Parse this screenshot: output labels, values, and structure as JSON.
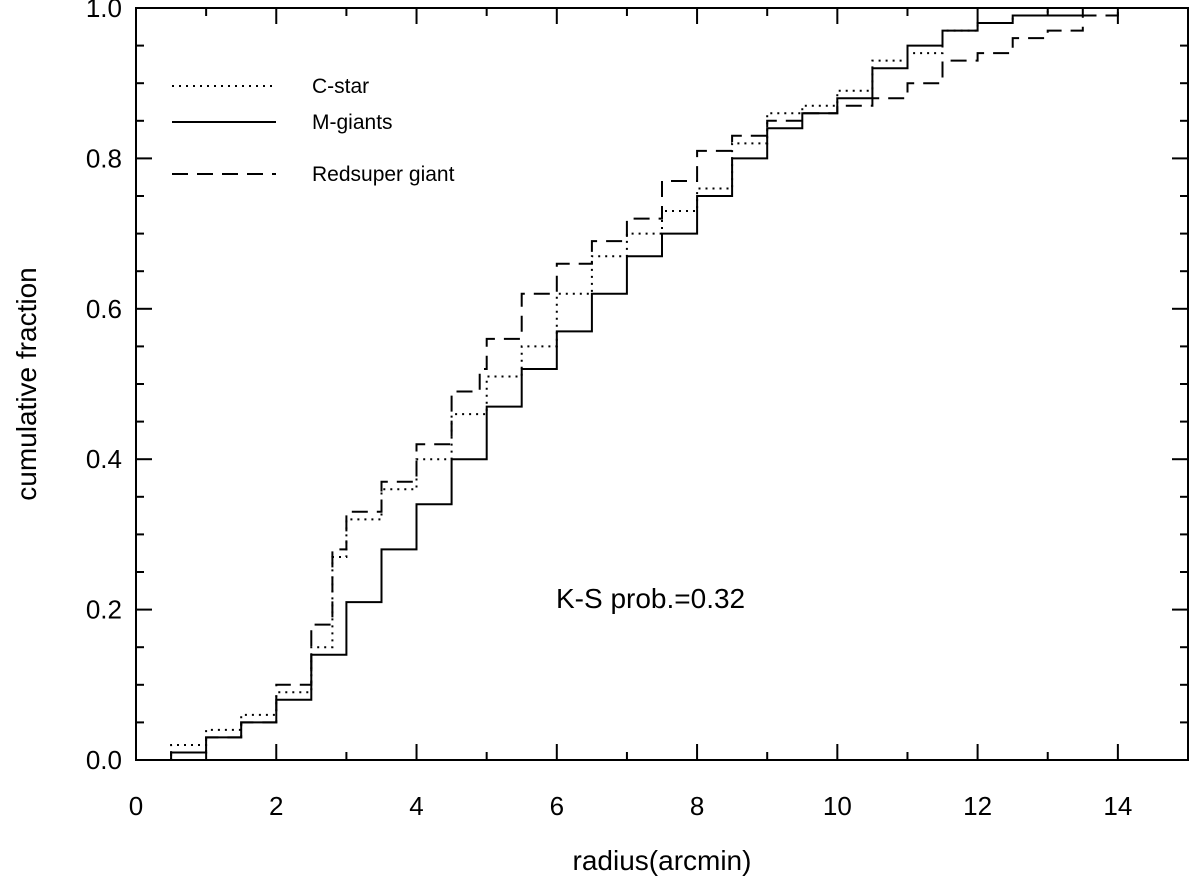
{
  "chart_data": {
    "type": "line",
    "title": "",
    "xlabel": "radius(arcmin)",
    "ylabel": "cumulative fraction",
    "xlim": [
      0,
      15
    ],
    "ylim": [
      0,
      1
    ],
    "x_ticks": [
      0,
      2,
      4,
      6,
      8,
      10,
      12,
      14
    ],
    "y_ticks": [
      0.0,
      0.2,
      0.4,
      0.6,
      0.8,
      1.0
    ],
    "x_tick_labels": [
      "0",
      "2",
      "4",
      "6",
      "8",
      "10",
      "12",
      "14"
    ],
    "y_tick_labels": [
      "0.0",
      "0.2",
      "0.4",
      "0.6",
      "0.8",
      "1.0"
    ],
    "grid": false,
    "legend_position": "top-left",
    "annotation": "K-S prob.=0.32",
    "series": [
      {
        "name": "C-star",
        "style": "dotted",
        "x": [
          0.2,
          0.5,
          1.0,
          1.5,
          2.0,
          2.5,
          2.8,
          3.0,
          3.5,
          4.0,
          4.5,
          5.0,
          5.5,
          6.0,
          6.5,
          7.0,
          7.5,
          8.0,
          8.5,
          9.0,
          9.5,
          10.0,
          10.5,
          11.0,
          11.5,
          12.0,
          12.5,
          13.0,
          13.5,
          14.0,
          15.0
        ],
        "y": [
          0.0,
          0.02,
          0.04,
          0.06,
          0.09,
          0.15,
          0.27,
          0.32,
          0.36,
          0.4,
          0.46,
          0.51,
          0.55,
          0.62,
          0.67,
          0.7,
          0.73,
          0.76,
          0.82,
          0.86,
          0.87,
          0.89,
          0.93,
          0.94,
          0.97,
          0.98,
          0.99,
          1.0,
          1.0,
          1.0,
          1.0
        ]
      },
      {
        "name": "M-giants",
        "style": "solid",
        "x": [
          0.2,
          0.5,
          1.0,
          1.5,
          2.0,
          2.5,
          3.0,
          3.5,
          4.0,
          4.5,
          5.0,
          5.5,
          6.0,
          6.5,
          7.0,
          7.5,
          8.0,
          8.5,
          9.0,
          9.5,
          10.0,
          10.5,
          11.0,
          11.5,
          12.0,
          12.5,
          13.0,
          13.5,
          14.0,
          15.0
        ],
        "y": [
          0.0,
          0.01,
          0.03,
          0.05,
          0.08,
          0.14,
          0.21,
          0.28,
          0.34,
          0.4,
          0.47,
          0.52,
          0.57,
          0.62,
          0.67,
          0.7,
          0.75,
          0.8,
          0.84,
          0.86,
          0.88,
          0.92,
          0.95,
          0.97,
          0.98,
          0.99,
          0.99,
          1.0,
          1.0,
          1.0
        ]
      },
      {
        "name": "Redsuper giant",
        "style": "dashed",
        "x": [
          0.2,
          0.5,
          1.0,
          1.5,
          2.0,
          2.5,
          2.8,
          3.0,
          3.5,
          4.0,
          4.5,
          4.9,
          5.0,
          5.5,
          6.0,
          6.5,
          7.0,
          7.5,
          8.0,
          8.5,
          9.0,
          9.5,
          10.0,
          10.5,
          11.0,
          11.5,
          12.0,
          12.5,
          13.0,
          13.5,
          14.0,
          15.0
        ],
        "y": [
          0.0,
          0.01,
          0.03,
          0.05,
          0.1,
          0.18,
          0.28,
          0.33,
          0.37,
          0.42,
          0.49,
          0.52,
          0.56,
          0.62,
          0.66,
          0.69,
          0.72,
          0.77,
          0.81,
          0.83,
          0.85,
          0.86,
          0.87,
          0.88,
          0.9,
          0.93,
          0.94,
          0.96,
          0.97,
          0.99,
          1.0,
          1.0
        ]
      }
    ]
  }
}
